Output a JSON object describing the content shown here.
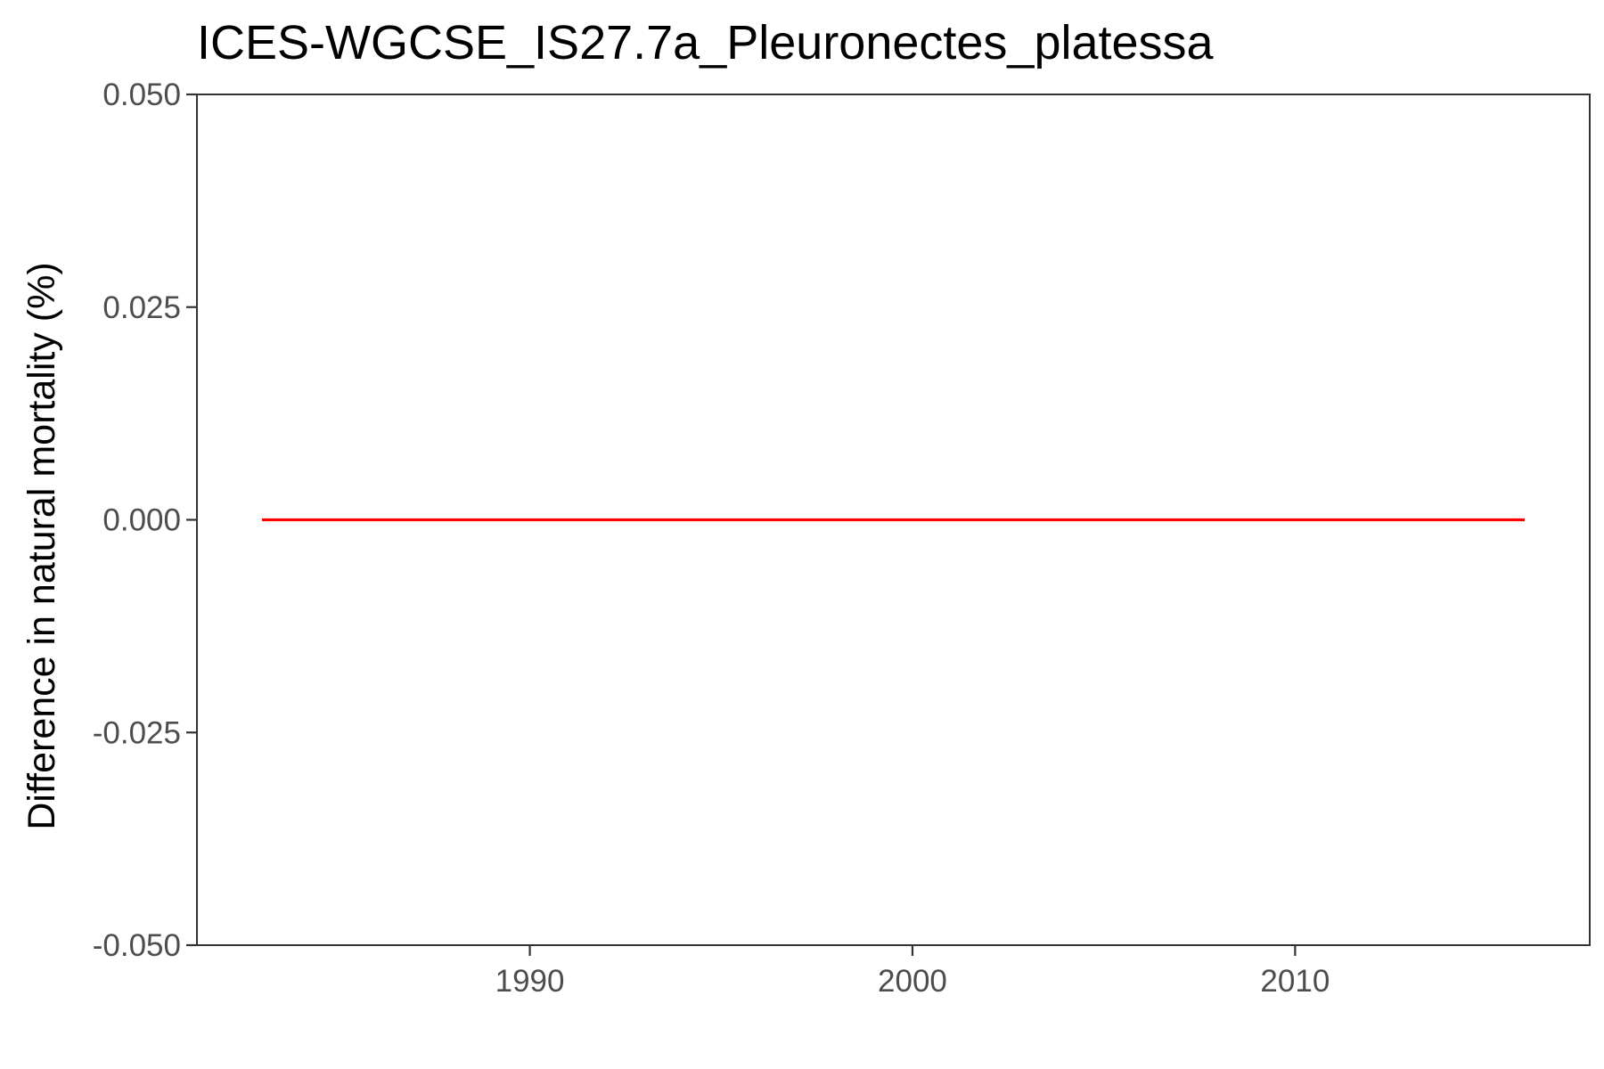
{
  "chart_data": {
    "type": "line",
    "title": "ICES-WGCSE_IS27.7a_Pleuronectes_platessa",
    "xlabel": "",
    "ylabel": "Difference in natural mortality (%)",
    "xlim": [
      1981.3,
      2017.7
    ],
    "ylim": [
      -0.05,
      0.05
    ],
    "x_ticks": [
      1990,
      2000,
      2010
    ],
    "x_tick_labels": [
      "1990",
      "2000",
      "2010"
    ],
    "y_ticks": [
      -0.05,
      -0.025,
      0,
      0.025,
      0.05
    ],
    "y_tick_labels": [
      "-0.050",
      "-0.025",
      "0.000",
      "0.025",
      "0.050"
    ],
    "grid": false,
    "legend": "none",
    "series": [
      {
        "color": "#ff0000",
        "x": [
          1983,
          1984,
          1985,
          1986,
          1987,
          1988,
          1989,
          1990,
          1991,
          1992,
          1993,
          1994,
          1995,
          1996,
          1997,
          1998,
          1999,
          2000,
          2001,
          2002,
          2003,
          2004,
          2005,
          2006,
          2007,
          2008,
          2009,
          2010,
          2011,
          2012,
          2013,
          2014,
          2015,
          2016
        ],
        "y": [
          0,
          0,
          0,
          0,
          0,
          0,
          0,
          0,
          0,
          0,
          0,
          0,
          0,
          0,
          0,
          0,
          0,
          0,
          0,
          0,
          0,
          0,
          0,
          0,
          0,
          0,
          0,
          0,
          0,
          0,
          0,
          0,
          0,
          0
        ]
      }
    ]
  }
}
